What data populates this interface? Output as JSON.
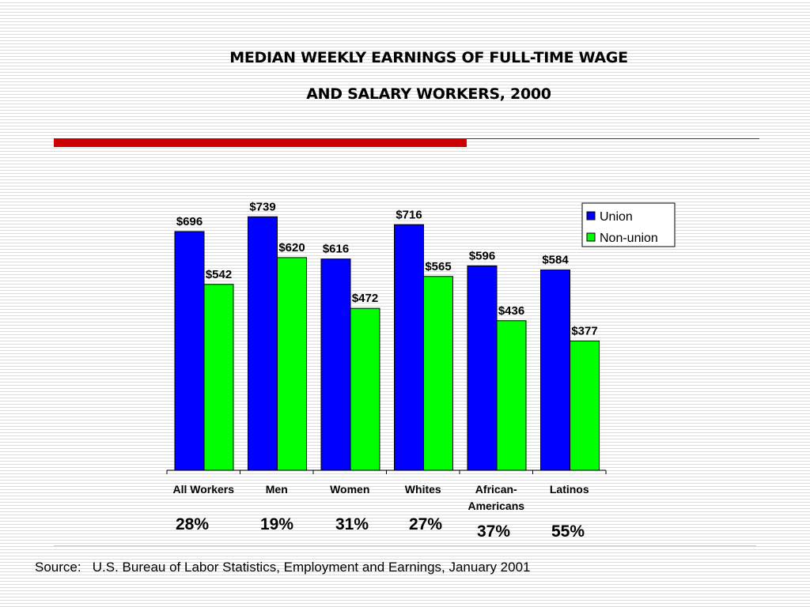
{
  "slide": {
    "title_line1": "MEDIAN WEEKLY EARNINGS OF FULL-TIME WAGE",
    "title_line2": "AND SALARY WORKERS, 2000",
    "source": "Source:   U.S. Bureau of Labor Statistics, Employment and Earnings, January 2001",
    "accent_red": "#cc0000"
  },
  "chart_data": {
    "type": "bar",
    "categories": [
      [
        "All Workers"
      ],
      [
        "Men"
      ],
      [
        "Women"
      ],
      [
        "Whites"
      ],
      [
        "African-",
        "Americans"
      ],
      [
        "Latinos"
      ]
    ],
    "series": [
      {
        "name": "Union",
        "color": "#0000ff",
        "values": [
          696,
          739,
          616,
          716,
          596,
          584
        ],
        "labels": [
          "$696",
          "$739",
          "$616",
          "$716",
          "$596",
          "$584"
        ]
      },
      {
        "name": "Non-union",
        "color": "#00ff00",
        "values": [
          542,
          620,
          472,
          565,
          436,
          377
        ],
        "labels": [
          "$542",
          "$620",
          "$472",
          "$565",
          "$436",
          "$377"
        ]
      }
    ],
    "ylim": [
      0,
      800
    ],
    "legend_position": "top-right",
    "grid": false,
    "annotations": [
      "28%",
      "19%",
      "31%",
      "27%",
      "37%",
      "55%"
    ]
  }
}
